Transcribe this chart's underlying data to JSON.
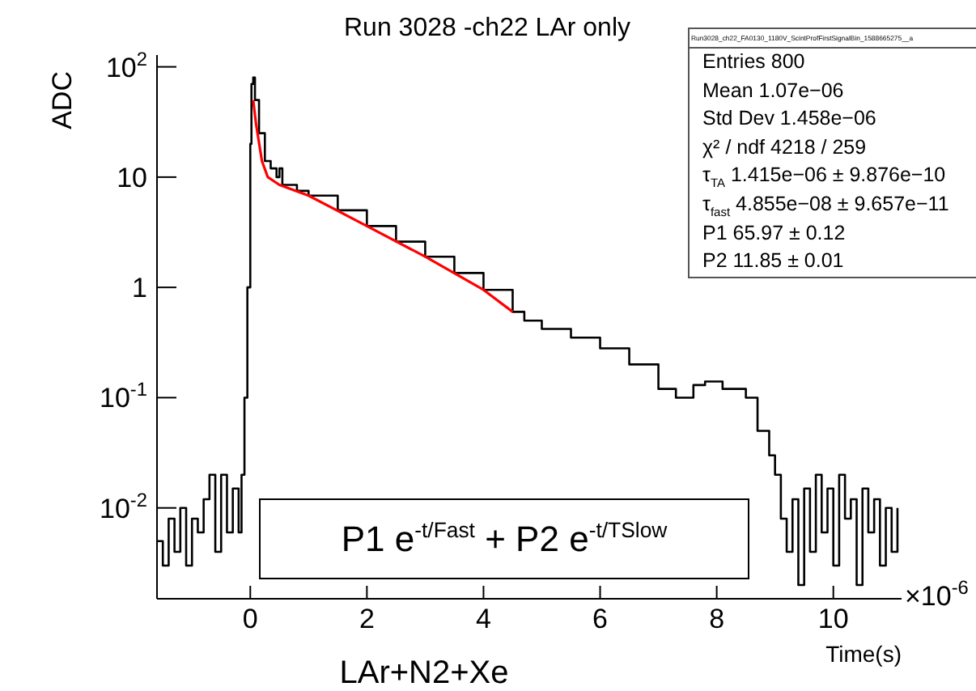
{
  "chart_data": {
    "type": "step",
    "title": "Run 3028 -ch22 LAr only",
    "xlabel": "Time(s)",
    "ylabel": "ADC",
    "log": "y",
    "grid": false,
    "legend": false,
    "marker": "none",
    "line_style": "solid",
    "xlim": [
      -1.6,
      11.17
    ],
    "xticks": [
      0,
      2,
      4,
      6,
      8,
      10
    ],
    "ylim": [
      0.0015,
      128
    ],
    "yticks": [
      {
        "value": 0.01,
        "label": "10$^{-2}$"
      },
      {
        "value": 0.1,
        "label": "10$^{-1}$"
      },
      1,
      10,
      {
        "value": 100,
        "label": "10$^{2}$"
      }
    ],
    "series": [
      {
        "color": "#000000",
        "x": [
          -1.6,
          -1.5,
          -1.4,
          -1.3,
          -1.2,
          -1.1,
          -1.0,
          -0.9,
          -0.8,
          -0.7,
          -0.6,
          -0.5,
          -0.4,
          -0.3,
          -0.2,
          -0.15,
          -0.1,
          -0.05,
          0,
          0.02,
          0.05,
          0.08,
          0.15,
          0.25,
          0.35,
          0.45,
          0.5,
          0.55,
          0.8,
          1.0,
          1.5,
          2,
          2.5,
          3,
          3.5,
          4,
          4.5,
          4.7,
          5,
          5.5,
          6,
          6.5,
          7,
          7.3,
          7.6,
          7.8,
          8.1,
          8.5,
          8.7,
          8.9,
          9.0,
          9.1,
          9.2,
          9.3,
          9.4,
          9.5,
          9.6,
          9.7,
          9.8,
          9.9,
          10.0,
          10.1,
          10.2,
          10.3,
          10.4,
          10.5,
          10.6,
          10.7,
          10.8,
          10.9,
          11.0,
          11.1
        ],
        "values": [
          0.005,
          0.003,
          0.008,
          0.004,
          0.01,
          0.003,
          0.008,
          0.006,
          0.012,
          0.02,
          0.004,
          0.02,
          0.006,
          0.015,
          0.006,
          0.02,
          0.1,
          1,
          20,
          70,
          80,
          50,
          25,
          14,
          12,
          10,
          12,
          8.5,
          7.5,
          6.8,
          5.0,
          3.6,
          2.6,
          1.9,
          1.35,
          0.95,
          0.6,
          0.5,
          0.42,
          0.35,
          0.28,
          0.2,
          0.12,
          0.1,
          0.13,
          0.14,
          0.12,
          0.1,
          0.05,
          0.03,
          0.02,
          0.008,
          0.004,
          0.012,
          0.002,
          0.015,
          0.004,
          0.02,
          0.006,
          0.015,
          0.003,
          0.02,
          0.008,
          0.012,
          0.002,
          0.015,
          0.006,
          0.012,
          0.003,
          0.01,
          0.004,
          0.01
        ]
      },
      {
        "type": "line",
        "color": "#ff0000",
        "x": [
          0.05,
          0.1,
          0.2,
          0.3,
          0.5,
          1,
          2,
          3,
          4,
          4.5
        ],
        "values": [
          50,
          30,
          14,
          10,
          8.5,
          6.8,
          3.6,
          1.9,
          0.95,
          0.6
        ]
      }
    ],
    "annotations": [
      "×10$^{-6}$",
      "P1 e$^{-t/Fast}$ + P2 e$^{-t/TSlow}$",
      "LAr+N2+Xe",
      "Run3028_ch22_FA0130_1180V_ScintProfFirstSignalBin_1588665275__a",
      "Entries 800",
      "Mean 1.07e−06",
      "Std Dev 1.458e−06",
      "χ² / ndf 4218 / 259",
      "τ$_{TA}$ 1.415e−06 ± 9.876e−10",
      "τ$_{fast}$ 4.855e−08 ± 9.657e−11",
      "P1 65.97 ± 0.12",
      "P2 11.85 ± 0.01"
    ]
  }
}
